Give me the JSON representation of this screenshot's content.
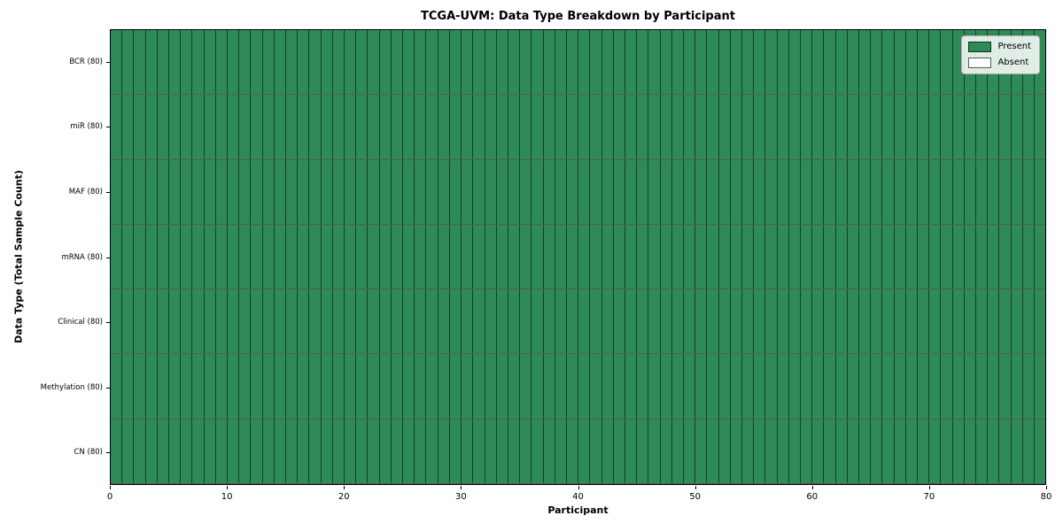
{
  "title": "TCGA-UVM: Data Type Breakdown by Participant",
  "axes": {
    "x_label": "Participant",
    "y_label": "Data Type (Total Sample Count)",
    "x_tick_labels": [
      "0",
      "10",
      "20",
      "30",
      "40",
      "50",
      "60",
      "70",
      "80"
    ],
    "y_tick_labels": [
      "BCR (80)",
      "miR (80)",
      "MAF (80)",
      "mRNA (80)",
      "Clinical (80)",
      "Methylation (80)",
      "CN (80)"
    ]
  },
  "legend": {
    "position": "upper right",
    "items": [
      {
        "label": "Present",
        "color": "#2E8B57"
      },
      {
        "label": "Absent",
        "color": "#FFFFFF"
      }
    ]
  },
  "colors": {
    "present": "#2E8B57",
    "absent": "#FFFFFF",
    "cell_border": "rgba(0,0,0,0.55)",
    "axis": "#000000"
  },
  "chart_data": {
    "type": "heatmap",
    "title": "TCGA-UVM: Data Type Breakdown by Participant",
    "xlabel": "Participant",
    "ylabel": "Data Type (Total Sample Count)",
    "xlim": [
      0,
      80
    ],
    "x_ticks": [
      0,
      10,
      20,
      30,
      40,
      50,
      60,
      70,
      80
    ],
    "n_participants": 80,
    "cell_states": {
      "present": 1,
      "absent": 0
    },
    "rows": [
      {
        "data_type": "BCR",
        "label": "BCR (80)",
        "total_sample_count": 80,
        "present_count": 80,
        "absent_count": 0
      },
      {
        "data_type": "miR",
        "label": "miR (80)",
        "total_sample_count": 80,
        "present_count": 80,
        "absent_count": 0
      },
      {
        "data_type": "MAF",
        "label": "MAF (80)",
        "total_sample_count": 80,
        "present_count": 80,
        "absent_count": 0
      },
      {
        "data_type": "mRNA",
        "label": "mRNA (80)",
        "total_sample_count": 80,
        "present_count": 80,
        "absent_count": 0
      },
      {
        "data_type": "Clinical",
        "label": "Clinical (80)",
        "total_sample_count": 80,
        "present_count": 80,
        "absent_count": 0
      },
      {
        "data_type": "Methylation",
        "label": "Methylation (80)",
        "total_sample_count": 80,
        "present_count": 80,
        "absent_count": 0
      },
      {
        "data_type": "CN",
        "label": "CN (80)",
        "total_sample_count": 80,
        "present_count": 80,
        "absent_count": 0
      }
    ],
    "all_cells_value": "present",
    "legend_entries": [
      "Present",
      "Absent"
    ],
    "legend_position": "upper right",
    "grid": true
  }
}
